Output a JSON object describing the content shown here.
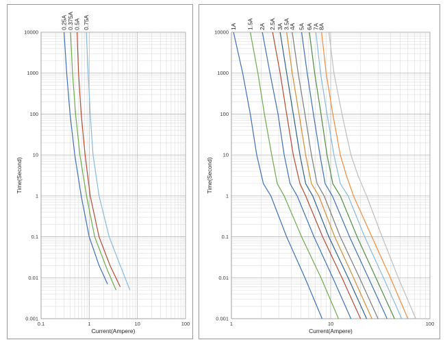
{
  "chart_data": [
    {
      "type": "line",
      "xlabel": "Current(Ampere)",
      "ylabel": "Time(Second)",
      "x_scale": "log",
      "y_scale": "log",
      "xlim": [
        0.1,
        100
      ],
      "ylim": [
        0.001,
        10000
      ],
      "x_ticks": [
        "0.1",
        "1",
        "10",
        "100"
      ],
      "y_ticks": [
        "0.001",
        "0.01",
        "0.1",
        "1",
        "10",
        "100",
        "1000",
        "10000"
      ],
      "grid": true,
      "legend": "labels at top of each curve",
      "series": [
        {
          "name": "0.25A",
          "color": "#3b6fb6",
          "points": [
            [
              0.3,
              10000
            ],
            [
              0.34,
              1000
            ],
            [
              0.4,
              100
            ],
            [
              0.5,
              10
            ],
            [
              0.68,
              1
            ],
            [
              1.0,
              0.1
            ],
            [
              1.6,
              0.02
            ],
            [
              2.4,
              0.007
            ]
          ]
        },
        {
          "name": "0.375A",
          "color": "#6aab46",
          "points": [
            [
              0.41,
              10000
            ],
            [
              0.45,
              1000
            ],
            [
              0.52,
              100
            ],
            [
              0.64,
              10
            ],
            [
              0.88,
              1
            ],
            [
              1.3,
              0.1
            ],
            [
              2.4,
              0.015
            ],
            [
              3.6,
              0.005
            ]
          ]
        },
        {
          "name": "0.5A",
          "color": "#b5472f",
          "points": [
            [
              0.56,
              10000
            ],
            [
              0.6,
              1000
            ],
            [
              0.68,
              100
            ],
            [
              0.82,
              10
            ],
            [
              1.05,
              1
            ],
            [
              1.6,
              0.1
            ],
            [
              2.7,
              0.02
            ],
            [
              4.4,
              0.006
            ]
          ]
        },
        {
          "name": "0.75A",
          "color": "#85b8dd",
          "points": [
            [
              0.87,
              10000
            ],
            [
              0.95,
              1000
            ],
            [
              1.05,
              100
            ],
            [
              1.2,
              10
            ],
            [
              1.6,
              1
            ],
            [
              2.6,
              0.1
            ],
            [
              4.4,
              0.02
            ],
            [
              7.0,
              0.005
            ]
          ]
        }
      ]
    },
    {
      "type": "line",
      "xlabel": "Current(Ampere)",
      "ylabel": "Time(Second)",
      "x_scale": "log",
      "y_scale": "log",
      "xlim": [
        1,
        100
      ],
      "ylim": [
        0.001,
        10000
      ],
      "x_ticks": [
        "1",
        "10",
        "100"
      ],
      "y_ticks": [
        "0.001",
        "0.01",
        "0.1",
        "1",
        "10",
        "100",
        "1000",
        "10000"
      ],
      "grid": true,
      "legend": "labels at top of each curve",
      "series": [
        {
          "name": "1A",
          "color": "#3b6fb6",
          "points": [
            [
              1.05,
              10000
            ],
            [
              1.3,
              1000
            ],
            [
              1.55,
              100
            ],
            [
              1.8,
              10
            ],
            [
              2.1,
              2
            ],
            [
              2.5,
              1
            ],
            [
              3.6,
              0.1
            ],
            [
              5.5,
              0.01
            ],
            [
              8.2,
              0.001
            ]
          ]
        },
        {
          "name": "1.5A",
          "color": "#6aab46",
          "points": [
            [
              1.55,
              10000
            ],
            [
              1.85,
              1000
            ],
            [
              2.15,
              100
            ],
            [
              2.55,
              10
            ],
            [
              2.9,
              2
            ],
            [
              3.4,
              1
            ],
            [
              5.1,
              0.1
            ],
            [
              8.0,
              0.01
            ],
            [
              12.0,
              0.001
            ]
          ]
        },
        {
          "name": "2A",
          "color": "#3b6fb6",
          "points": [
            [
              2.05,
              10000
            ],
            [
              2.45,
              1000
            ],
            [
              2.95,
              100
            ],
            [
              3.4,
              10
            ],
            [
              3.9,
              2
            ],
            [
              4.6,
              1
            ],
            [
              6.8,
              0.1
            ],
            [
              10.5,
              0.01
            ],
            [
              16.0,
              0.001
            ]
          ]
        },
        {
          "name": "2.5A",
          "color": "#b5472f",
          "points": [
            [
              2.6,
              10000
            ],
            [
              3.1,
              1000
            ],
            [
              3.6,
              100
            ],
            [
              4.2,
              10
            ],
            [
              4.9,
              2
            ],
            [
              5.6,
              1
            ],
            [
              8.3,
              0.1
            ],
            [
              13.0,
              0.01
            ],
            [
              20.0,
              0.001
            ]
          ]
        },
        {
          "name": "3A",
          "color": "#2e5f8a",
          "points": [
            [
              3.1,
              10000
            ],
            [
              3.6,
              1000
            ],
            [
              4.2,
              100
            ],
            [
              4.9,
              10
            ],
            [
              5.6,
              2
            ],
            [
              6.6,
              1
            ],
            [
              9.6,
              0.1
            ],
            [
              15.0,
              0.01
            ],
            [
              23.0,
              0.001
            ]
          ]
        },
        {
          "name": "3.5A",
          "color": "#d38b2e",
          "points": [
            [
              3.6,
              10000
            ],
            [
              4.1,
              1000
            ],
            [
              4.8,
              100
            ],
            [
              5.6,
              10
            ],
            [
              6.4,
              2
            ],
            [
              7.6,
              1
            ],
            [
              11.0,
              0.1
            ],
            [
              17.0,
              0.01
            ],
            [
              26.0,
              0.001
            ]
          ]
        },
        {
          "name": "4A",
          "color": "#7a7a7a",
          "points": [
            [
              4.1,
              10000
            ],
            [
              4.7,
              1000
            ],
            [
              5.5,
              100
            ],
            [
              6.4,
              10
            ],
            [
              7.3,
              2
            ],
            [
              8.6,
              1
            ],
            [
              12.5,
              0.1
            ],
            [
              19.5,
              0.01
            ],
            [
              30.0,
              0.001
            ]
          ]
        },
        {
          "name": "5A",
          "color": "#3b6fb6",
          "points": [
            [
              5.1,
              10000
            ],
            [
              5.8,
              1000
            ],
            [
              6.7,
              100
            ],
            [
              7.8,
              10
            ],
            [
              8.8,
              2
            ],
            [
              10.4,
              1
            ],
            [
              15.5,
              0.1
            ],
            [
              24.0,
              0.01
            ],
            [
              37.0,
              0.001
            ]
          ]
        },
        {
          "name": "6A",
          "color": "#4e8a3e",
          "points": [
            [
              6.1,
              10000
            ],
            [
              6.9,
              1000
            ],
            [
              8.0,
              100
            ],
            [
              9.2,
              10
            ],
            [
              10.5,
              2
            ],
            [
              12.5,
              1
            ],
            [
              18.5,
              0.1
            ],
            [
              28.5,
              0.01
            ],
            [
              44.0,
              0.001
            ]
          ]
        },
        {
          "name": "7A",
          "color": "#85b8dd",
          "points": [
            [
              7.1,
              10000
            ],
            [
              7.9,
              1000
            ],
            [
              9.2,
              100
            ],
            [
              10.8,
              10
            ],
            [
              12.5,
              2
            ],
            [
              15.0,
              1
            ],
            [
              22.0,
              0.1
            ],
            [
              34.0,
              0.01
            ],
            [
              52.0,
              0.001
            ]
          ]
        },
        {
          "name": "8A",
          "color": "#f08a3a",
          "points": [
            [
              8.1,
              10000
            ],
            [
              9.0,
              1000
            ],
            [
              10.5,
              100
            ],
            [
              12.5,
              10
            ],
            [
              14.5,
              3
            ],
            [
              17.0,
              1
            ],
            [
              26.0,
              0.1
            ],
            [
              40.0,
              0.01
            ],
            [
              60.0,
              0.001
            ]
          ]
        },
        {
          "name": "",
          "color": "#bdbdbd",
          "points": [
            [
              9.6,
              10000
            ],
            [
              10.8,
              1000
            ],
            [
              13.0,
              100
            ],
            [
              16.0,
              10
            ],
            [
              19.0,
              3
            ],
            [
              23.0,
              1
            ],
            [
              33.0,
              0.1
            ],
            [
              48.0,
              0.01
            ],
            [
              72.0,
              0.001
            ]
          ]
        }
      ]
    }
  ]
}
